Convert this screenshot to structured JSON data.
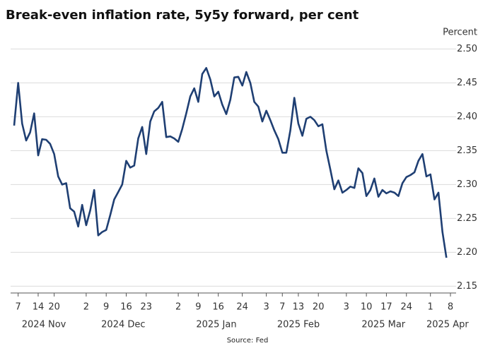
{
  "chart_data": {
    "type": "line",
    "title": "Break-even inflation rate, 5y5y forward, per cent",
    "y_axis_label": "Percent",
    "source": "Source: Fed",
    "categories": [
      null,
      "7",
      null,
      null,
      null,
      null,
      "14",
      null,
      null,
      null,
      "20",
      null,
      null,
      null,
      null,
      null,
      null,
      null,
      "2",
      null,
      null,
      null,
      null,
      "9",
      null,
      null,
      null,
      null,
      "16",
      null,
      null,
      null,
      null,
      "23",
      null,
      null,
      null,
      null,
      null,
      null,
      null,
      "2",
      null,
      null,
      null,
      null,
      "9",
      null,
      null,
      null,
      null,
      "16",
      null,
      null,
      null,
      null,
      null,
      "24",
      null,
      null,
      null,
      null,
      null,
      "3",
      null,
      null,
      null,
      "7",
      null,
      null,
      null,
      "13",
      null,
      null,
      null,
      null,
      "20",
      null,
      null,
      null,
      null,
      null,
      null,
      "3",
      null,
      null,
      null,
      null,
      "10",
      null,
      null,
      null,
      null,
      "17",
      null,
      null,
      null,
      null,
      "24",
      null,
      null,
      null,
      null,
      null,
      "1",
      null,
      null,
      null,
      null,
      "8"
    ],
    "month_labels": [
      "2024 Nov",
      "2024 Dec",
      "2025 Jan",
      "2025 Feb",
      "2025 Mar",
      "2025 Apr"
    ],
    "series": [
      {
        "name": "5y5y forward",
        "color": "#1f3f73",
        "values": [
          2.387,
          2.45,
          2.39,
          2.365,
          2.377,
          2.405,
          2.343,
          2.367,
          2.366,
          2.36,
          2.345,
          2.312,
          2.3,
          2.302,
          2.265,
          2.26,
          2.238,
          2.27,
          2.24,
          2.262,
          2.292,
          2.225,
          2.23,
          2.233,
          2.255,
          2.278,
          2.289,
          2.3,
          2.335,
          2.325,
          2.328,
          2.368,
          2.385,
          2.345,
          2.393,
          2.408,
          2.413,
          2.422,
          2.37,
          2.371,
          2.368,
          2.363,
          2.382,
          2.405,
          2.43,
          2.442,
          2.422,
          2.463,
          2.472,
          2.455,
          2.43,
          2.437,
          2.418,
          2.404,
          2.425,
          2.458,
          2.459,
          2.446,
          2.466,
          2.45,
          2.422,
          2.415,
          2.393,
          2.409,
          2.395,
          2.38,
          2.367,
          2.347,
          2.347,
          2.38,
          2.428,
          2.39,
          2.372,
          2.397,
          2.4,
          2.395,
          2.386,
          2.389,
          2.35,
          2.322,
          2.293,
          2.306,
          2.288,
          2.292,
          2.297,
          2.295,
          2.324,
          2.317,
          2.283,
          2.292,
          2.309,
          2.282,
          2.292,
          2.287,
          2.29,
          2.288,
          2.283,
          2.302,
          2.311,
          2.314,
          2.318,
          2.335,
          2.345,
          2.312,
          2.315,
          2.278,
          2.288,
          2.23,
          2.192,
          null
        ]
      }
    ],
    "ylim": [
      2.14,
      2.515
    ],
    "yticks": [
      2.15,
      {
        "value": 2.2,
        "label": "2.20"
      },
      2.25,
      {
        "value": 2.3,
        "label": "2.30"
      },
      2.35,
      {
        "value": 2.4,
        "label": "2.40"
      },
      2.45,
      {
        "value": 2.5,
        "label": "2.50"
      }
    ],
    "grid": true
  }
}
